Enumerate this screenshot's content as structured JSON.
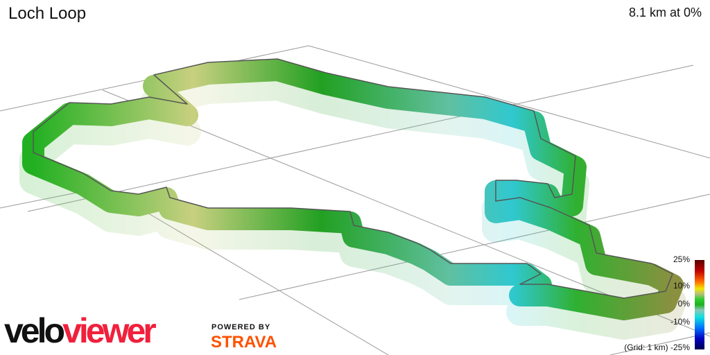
{
  "header": {
    "title": "Loch Loop",
    "summary": "8.1 km at 0%"
  },
  "legend": {
    "ticks": [
      "25%",
      "10%",
      "0%",
      "-10%"
    ],
    "grid_label": "(Grid: 1 km)",
    "min_label": "-25%",
    "colors": {
      "max": "#5a0000",
      "mid": "#20b020",
      "min": "#000050"
    }
  },
  "branding": {
    "logo_part1": "velo",
    "logo_part2": "viewer",
    "powered_by": "POWERED BY",
    "strava": "STRAVA",
    "colors": {
      "velo": "#111111",
      "viewer": "#f0203c",
      "strava": "#fc5200"
    }
  }
}
